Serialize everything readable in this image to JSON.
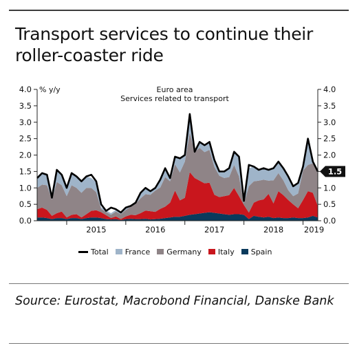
{
  "title": "Transport services to continue their roller-coaster ride",
  "source": "Source: Eurostat, Macrobond Financial, Danske Bank",
  "colors": {
    "total": "#000000",
    "France": "#9fb4c9",
    "Germany": "#8f8487",
    "Italy": "#c9161d",
    "Spain": "#0a3a5c",
    "label_bg": "#111111"
  },
  "chart_data": {
    "type": "area",
    "subtitle": [
      "Euro area",
      "Services related to transport"
    ],
    "ylabel": "% y/y",
    "ylim": [
      0,
      4
    ],
    "yticks": [
      "0.0",
      "0.5",
      "1.0",
      "1.5",
      "2.0",
      "2.5",
      "3.0",
      "3.5",
      "4.0"
    ],
    "xticks": [
      "2015",
      "2016",
      "2017",
      "2018",
      "2019"
    ],
    "last_value_label": "1.5",
    "x": [
      "2014-07",
      "2014-08",
      "2014-09",
      "2014-10",
      "2014-11",
      "2014-12",
      "2015-01",
      "2015-02",
      "2015-03",
      "2015-04",
      "2015-05",
      "2015-06",
      "2015-07",
      "2015-08",
      "2015-09",
      "2015-10",
      "2015-11",
      "2015-12",
      "2016-01",
      "2016-02",
      "2016-03",
      "2016-04",
      "2016-05",
      "2016-06",
      "2016-07",
      "2016-08",
      "2016-09",
      "2016-10",
      "2016-11",
      "2016-12",
      "2017-01",
      "2017-02",
      "2017-03",
      "2017-04",
      "2017-05",
      "2017-06",
      "2017-07",
      "2017-08",
      "2017-09",
      "2017-10",
      "2017-11",
      "2017-12",
      "2018-01",
      "2018-02",
      "2018-03",
      "2018-04",
      "2018-05",
      "2018-06",
      "2018-07",
      "2018-08",
      "2018-09",
      "2018-10",
      "2018-11",
      "2018-12",
      "2019-01",
      "2019-02",
      "2019-03",
      "2019-04"
    ],
    "series": [
      {
        "name": "Spain",
        "values": [
          0.1,
          0.1,
          0.08,
          0.05,
          0.08,
          0.08,
          0.05,
          0.08,
          0.08,
          0.05,
          0.08,
          0.1,
          0.1,
          0.08,
          0.05,
          0.04,
          0.05,
          0.02,
          0.05,
          0.06,
          0.05,
          0.05,
          0.06,
          0.04,
          0.05,
          0.06,
          0.08,
          0.1,
          0.12,
          0.12,
          0.15,
          0.18,
          0.2,
          0.22,
          0.24,
          0.26,
          0.24,
          0.22,
          0.2,
          0.18,
          0.2,
          0.2,
          0.18,
          0.05,
          0.15,
          0.12,
          0.1,
          0.12,
          0.08,
          0.1,
          0.08,
          0.08,
          0.1,
          0.08,
          0.08,
          0.1,
          0.15,
          0.1
        ]
      },
      {
        "name": "Italy",
        "values": [
          0.25,
          0.3,
          0.25,
          0.1,
          0.15,
          0.2,
          0.05,
          0.1,
          0.12,
          0.05,
          0.12,
          0.2,
          0.22,
          0.18,
          0.12,
          0.04,
          0.08,
          0.03,
          0.08,
          0.12,
          0.12,
          0.18,
          0.25,
          0.25,
          0.22,
          0.3,
          0.35,
          0.45,
          0.8,
          0.5,
          0.55,
          1.3,
          1.1,
          1.0,
          0.9,
          0.9,
          0.55,
          0.5,
          0.55,
          0.6,
          0.8,
          0.55,
          0.3,
          0.2,
          0.4,
          0.5,
          0.55,
          0.7,
          0.45,
          0.8,
          0.7,
          0.55,
          0.4,
          0.3,
          0.55,
          0.8,
          0.7,
          0.35
        ]
      },
      {
        "name": "Germany",
        "values": [
          0.65,
          0.7,
          0.75,
          0.5,
          0.95,
          0.8,
          0.65,
          0.9,
          0.8,
          0.75,
          0.8,
          0.7,
          0.55,
          0.1,
          0.1,
          0.1,
          0.15,
          0.15,
          0.2,
          0.25,
          0.35,
          0.45,
          0.5,
          0.5,
          0.65,
          0.65,
          0.9,
          0.65,
          0.8,
          0.85,
          1.1,
          1.2,
          0.8,
          1.0,
          0.95,
          1.0,
          0.85,
          0.65,
          0.55,
          0.55,
          0.7,
          0.6,
          0.05,
          0.8,
          0.65,
          0.6,
          0.6,
          0.4,
          0.7,
          0.55,
          0.45,
          0.3,
          0.25,
          0.45,
          0.9,
          0.8,
          0.9,
          1.0
        ]
      },
      {
        "name": "France",
        "values": [
          0.3,
          0.35,
          0.35,
          0.05,
          0.4,
          0.35,
          0.2,
          0.35,
          0.35,
          0.35,
          0.35,
          0.3,
          0.3,
          0.05,
          0.05,
          0.05,
          0.05,
          0.05,
          0.05,
          0.05,
          0.05,
          0.2,
          0.2,
          0.1,
          0.1,
          0.25,
          0.25,
          0.15,
          0.2,
          0.45,
          0.18,
          0.57,
          0.05,
          0.2,
          0.2,
          0.25,
          0.2,
          0.15,
          0.2,
          0.3,
          0.4,
          0.6,
          0.05,
          0.55,
          0.45,
          0.35,
          0.35,
          0.35,
          0.35,
          0.35,
          0.4,
          0.4,
          0.3,
          0.32,
          0.12,
          0.8,
          0.1,
          0.05
        ]
      },
      {
        "name": "Total",
        "values": [
          1.3,
          1.45,
          1.4,
          0.7,
          1.55,
          1.4,
          1.0,
          1.45,
          1.35,
          1.2,
          1.35,
          1.4,
          1.2,
          0.5,
          0.3,
          0.4,
          0.35,
          0.25,
          0.4,
          0.45,
          0.55,
          0.85,
          1.0,
          0.9,
          1.0,
          1.25,
          1.6,
          1.3,
          1.95,
          1.9,
          2.0,
          3.25,
          2.1,
          2.4,
          2.3,
          2.4,
          1.85,
          1.5,
          1.5,
          1.6,
          2.1,
          1.95,
          0.6,
          1.7,
          1.65,
          1.55,
          1.6,
          1.55,
          1.6,
          1.8,
          1.6,
          1.35,
          1.05,
          1.15,
          1.65,
          2.5,
          1.8,
          1.5
        ]
      }
    ],
    "legend": [
      "Total",
      "France",
      "Germany",
      "Italy",
      "Spain"
    ],
    "legend_position": "bottom",
    "grid": false
  }
}
